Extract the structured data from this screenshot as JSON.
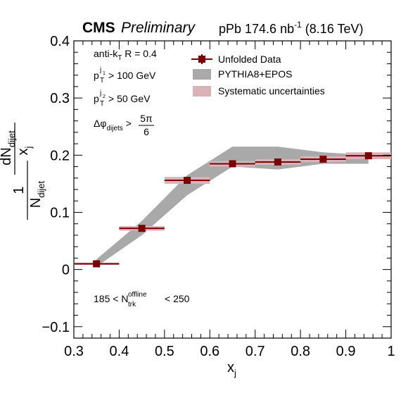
{
  "header": {
    "experiment": "CMS",
    "status": "Preliminary",
    "lumi_text": "pPb 174.6 nb",
    "lumi_exp": "-1",
    "energy_text": "(8.16 TeV)"
  },
  "annotations": {
    "jet_algo_prefix": "anti-k",
    "jet_algo_sub": "T",
    "jet_algo_suffix": "R = 0.4",
    "pt1_base": "p",
    "pt1_sub": "T",
    "pt1_sup": "j",
    "pt1_supsub": "1",
    "pt1_cut": "> 100 GeV",
    "pt2_base": "p",
    "pt2_sub": "T",
    "pt2_sup": "j",
    "pt2_supsub": "2",
    "pt2_cut": "> 50 GeV",
    "dphi_base": "Δφ",
    "dphi_sub": "dijets",
    "dphi_gt": ">",
    "dphi_num": "5π",
    "dphi_den": "6",
    "mult_prefix": "185 < N",
    "mult_sub": "trk",
    "mult_sup": "offline",
    "mult_suffix": "< 250"
  },
  "legend": {
    "data": "Unfolded Data",
    "pythia": "PYTHIA8+EPOS",
    "syst": "Systematic uncertainties"
  },
  "axis_title_y": {
    "num1": "1",
    "den1_base": "N",
    "den1_sub": "dijet",
    "num2_base": "dN",
    "num2_sub": "dijet",
    "den2_base": "x",
    "den2_sub": "j"
  },
  "colors": {
    "data": "#7a0000",
    "syst": "#d9b3b7",
    "pythia": "#a9a9a9"
  },
  "chart_data": {
    "type": "scatter",
    "xlabel": "x",
    "xlabel_sub": "j",
    "xlim": [
      0.3,
      1.0
    ],
    "ylim": [
      -0.12,
      0.4
    ],
    "x_ticks": [
      "0.3",
      "0.4",
      "0.5",
      "0.6",
      "0.7",
      "0.8",
      "0.9",
      "1"
    ],
    "y_ticks": [
      "−0.1",
      "0",
      "0.1",
      "0.2",
      "0.3",
      "0.4"
    ],
    "series": [
      {
        "name": "Unfolded Data",
        "bins": [
          {
            "lo": 0.3,
            "hi": 0.4,
            "x": 0.35,
            "y": 0.01,
            "syst": 0.002
          },
          {
            "lo": 0.4,
            "hi": 0.5,
            "x": 0.45,
            "y": 0.072,
            "syst": 0.004
          },
          {
            "lo": 0.5,
            "hi": 0.6,
            "x": 0.55,
            "y": 0.156,
            "syst": 0.006
          },
          {
            "lo": 0.6,
            "hi": 0.7,
            "x": 0.65,
            "y": 0.185,
            "syst": 0.005
          },
          {
            "lo": 0.7,
            "hi": 0.8,
            "x": 0.75,
            "y": 0.188,
            "syst": 0.005
          },
          {
            "lo": 0.8,
            "hi": 0.9,
            "x": 0.85,
            "y": 0.193,
            "syst": 0.005
          },
          {
            "lo": 0.9,
            "hi": 1.0,
            "x": 0.95,
            "y": 0.199,
            "syst": 0.006
          }
        ]
      },
      {
        "name": "PYTHIA8+EPOS",
        "band": [
          {
            "x": 0.35,
            "lo": 0.005,
            "hi": 0.018
          },
          {
            "x": 0.45,
            "lo": 0.06,
            "hi": 0.085
          },
          {
            "x": 0.55,
            "lo": 0.13,
            "hi": 0.165
          },
          {
            "x": 0.65,
            "lo": 0.18,
            "hi": 0.215
          },
          {
            "x": 0.75,
            "lo": 0.175,
            "hi": 0.215
          },
          {
            "x": 0.85,
            "lo": 0.185,
            "hi": 0.205
          },
          {
            "x": 0.95,
            "lo": 0.185,
            "hi": 0.2
          }
        ]
      }
    ]
  }
}
